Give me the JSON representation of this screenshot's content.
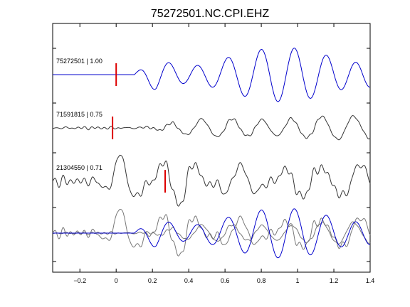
{
  "chart_data": {
    "type": "line",
    "title": "75272501.NC.CPI.EHZ",
    "xlabel": "",
    "ylabel": "",
    "xlim": [
      -0.35,
      1.4
    ],
    "x_ticks": [
      -0.2,
      0,
      0.2,
      0.4,
      0.6,
      0.8,
      1,
      1.2,
      1.4
    ],
    "x_tick_labels": [
      "−0.2",
      "0",
      "0.2",
      "0.4",
      "0.6",
      "0.8",
      "1",
      "1.2",
      "1.4"
    ],
    "grid": false,
    "colors": {
      "primary": "#0000cc",
      "other": "#333333",
      "overlay": "#777777",
      "pick": "#dd0000"
    },
    "traces": [
      {
        "label": "75272501 | 1.00",
        "color": "#0000cc",
        "pick_time": 0.0
      },
      {
        "label": "71591815 | 0.75",
        "color": "#333333",
        "pick_time": -0.02
      },
      {
        "label": "21304550 | 0.71",
        "color": "#333333",
        "pick_time": 0.27
      }
    ],
    "overlay": {
      "label": "stack of aligned traces"
    }
  }
}
